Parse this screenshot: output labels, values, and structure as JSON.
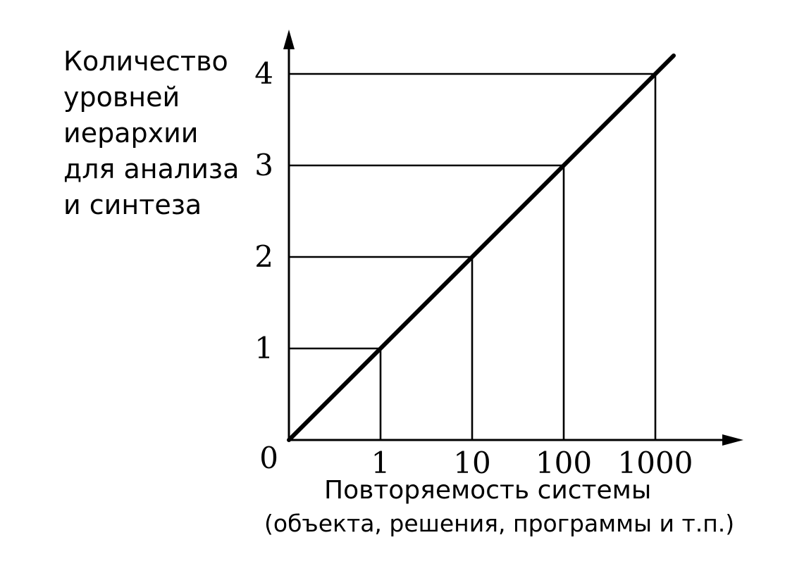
{
  "chart_data": {
    "type": "line",
    "title": "",
    "ylabel_lines": [
      "Количество",
      "уровней",
      "иерархии",
      "для анализа",
      "и синтеза"
    ],
    "xlabel": "Повторяемость системы",
    "xlabel_sub": "(объекта, решения, программы и т.п.)",
    "origin_label": "0",
    "x_ticks": [
      "1",
      "10",
      "100",
      "1000"
    ],
    "y_ticks": [
      "1",
      "2",
      "3",
      "4"
    ],
    "x_scale": "log",
    "grid": false,
    "series": [
      {
        "x": [
          1,
          10,
          100,
          1000
        ],
        "y": [
          1,
          2,
          3,
          4
        ]
      }
    ],
    "reference_lines": true
  }
}
